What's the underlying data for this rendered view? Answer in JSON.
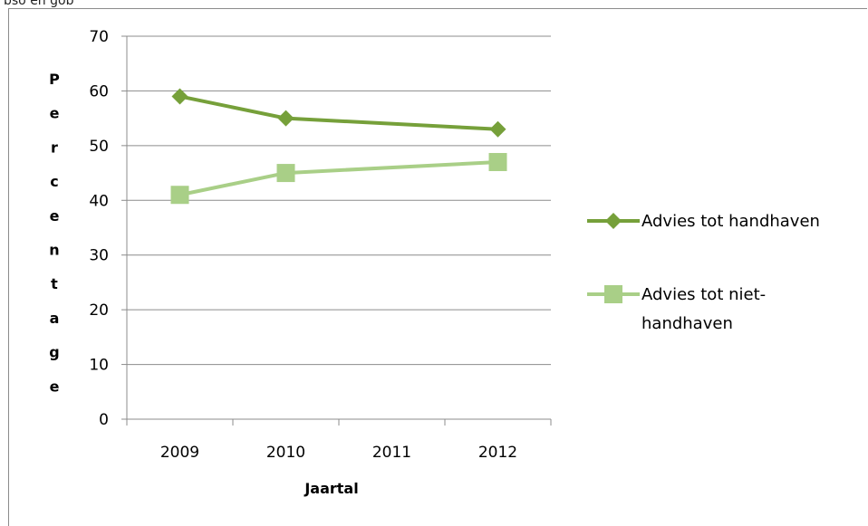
{
  "caption": "bso en gob",
  "chart_data": {
    "type": "line",
    "categories": [
      "2009",
      "2010",
      "2011",
      "2012"
    ],
    "series": [
      {
        "name": "Advies tot handhaven",
        "values": [
          59,
          55,
          null,
          53
        ],
        "color": "#76a03a",
        "marker": "diamond"
      },
      {
        "name": "Advies tot niet-handhaven",
        "values": [
          41,
          45,
          null,
          47
        ],
        "color": "#a9cf87",
        "marker": "square"
      }
    ],
    "legend_lines": [
      [
        "Advies tot handhaven"
      ],
      [
        "Advies tot niet-",
        "handhaven"
      ]
    ],
    "xlabel": "Jaartal",
    "ylabel": "Percentage",
    "ylim": [
      0,
      70
    ],
    "yticks": [
      0,
      10,
      20,
      30,
      40,
      50,
      60,
      70
    ],
    "grid": true,
    "legend_position": "right"
  }
}
